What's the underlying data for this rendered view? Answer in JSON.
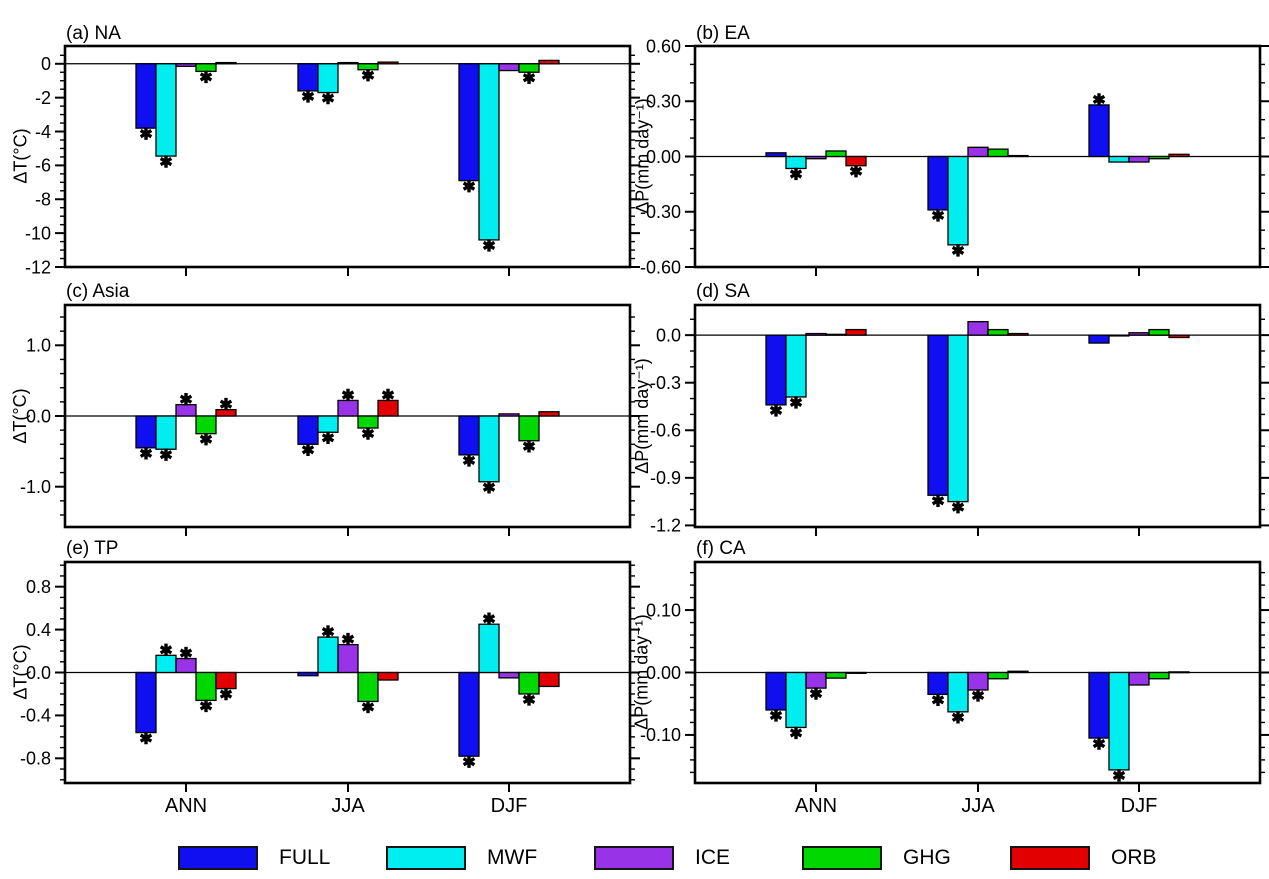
{
  "figure_type": "multi-panel seasonal bar chart",
  "categories": [
    "ANN",
    "JJA",
    "DJF"
  ],
  "experiments": [
    "FULL",
    "MWF",
    "ICE",
    "GHG",
    "ORB"
  ],
  "significance_marker": "black asterisk at bar tip",
  "legend": {
    "items": [
      {
        "label": "FULL",
        "color": "#0f0ff0"
      },
      {
        "label": "MWF",
        "color": "#00eef0"
      },
      {
        "label": "ICE",
        "color": "#9933e8"
      },
      {
        "label": "GHG",
        "color": "#00d800"
      },
      {
        "label": "ORB",
        "color": "#e30000"
      }
    ]
  },
  "chart_data": [
    {
      "id": "a",
      "type": "bar",
      "title": "(a) NA",
      "ylabel": "ΔT(°C)",
      "ylim": [
        -12,
        1.05
      ],
      "minor_step": 0.5,
      "show_x_labels": false,
      "categories": [
        "ANN",
        "JJA",
        "DJF"
      ],
      "yticks": [
        {
          "v": 0,
          "label": "0"
        },
        {
          "v": -2,
          "label": "-2"
        },
        {
          "v": -4,
          "label": "-4"
        },
        {
          "v": -6,
          "label": "-6"
        },
        {
          "v": -8,
          "label": "-8"
        },
        {
          "v": -10,
          "label": "-10"
        },
        {
          "v": -12,
          "label": "-12"
        }
      ],
      "series": [
        {
          "name": "FULL",
          "values": [
            -3.8,
            -1.6,
            -6.9
          ],
          "sig": [
            true,
            true,
            true
          ]
        },
        {
          "name": "MWF",
          "values": [
            -5.45,
            -1.7,
            -10.4
          ],
          "sig": [
            true,
            true,
            true
          ]
        },
        {
          "name": "ICE",
          "values": [
            -0.15,
            0.07,
            -0.4
          ],
          "sig": [
            false,
            false,
            false
          ]
        },
        {
          "name": "GHG",
          "values": [
            -0.45,
            -0.35,
            -0.5
          ],
          "sig": [
            true,
            true,
            true
          ]
        },
        {
          "name": "ORB",
          "values": [
            0.07,
            0.1,
            0.2
          ],
          "sig": [
            false,
            false,
            false
          ]
        }
      ]
    },
    {
      "id": "b",
      "type": "bar",
      "title": "(b) EA",
      "ylabel": "ΔP(mm day⁻¹)",
      "ylim": [
        -0.6,
        0.6
      ],
      "minor_step": 0.1,
      "show_x_labels": false,
      "categories": [
        "ANN",
        "JJA",
        "DJF"
      ],
      "yticks": [
        {
          "v": 0.6,
          "label": "0.60"
        },
        {
          "v": 0.3,
          "label": "0.30"
        },
        {
          "v": 0,
          "label": "0.00"
        },
        {
          "v": -0.3,
          "label": "-0.30"
        },
        {
          "v": -0.6,
          "label": "-0.60"
        }
      ],
      "series": [
        {
          "name": "FULL",
          "values": [
            0.02,
            -0.29,
            0.28
          ],
          "sig": [
            false,
            true,
            true
          ]
        },
        {
          "name": "MWF",
          "values": [
            -0.065,
            -0.48,
            -0.03
          ],
          "sig": [
            true,
            true,
            false
          ]
        },
        {
          "name": "ICE",
          "values": [
            -0.012,
            0.05,
            -0.03
          ],
          "sig": [
            false,
            false,
            false
          ]
        },
        {
          "name": "GHG",
          "values": [
            0.03,
            0.04,
            -0.012
          ],
          "sig": [
            false,
            false,
            false
          ]
        },
        {
          "name": "ORB",
          "values": [
            -0.05,
            0.005,
            0.012
          ],
          "sig": [
            true,
            false,
            false
          ]
        }
      ]
    },
    {
      "id": "c",
      "type": "bar",
      "title": "(c) Asia",
      "ylabel": "ΔT(°C)",
      "ylim": [
        -1.57,
        1.57
      ],
      "minor_step": 0.2,
      "show_x_labels": false,
      "categories": [
        "ANN",
        "JJA",
        "DJF"
      ],
      "yticks": [
        {
          "v": 1.0,
          "label": "1.0"
        },
        {
          "v": 0.0,
          "label": "0.0"
        },
        {
          "v": -1.0,
          "label": "-1.0"
        }
      ],
      "series": [
        {
          "name": "FULL",
          "values": [
            -0.45,
            -0.4,
            -0.55
          ],
          "sig": [
            true,
            true,
            true
          ]
        },
        {
          "name": "MWF",
          "values": [
            -0.47,
            -0.23,
            -0.93
          ],
          "sig": [
            true,
            true,
            true
          ]
        },
        {
          "name": "ICE",
          "values": [
            0.16,
            0.22,
            0.03
          ],
          "sig": [
            true,
            true,
            false
          ]
        },
        {
          "name": "GHG",
          "values": [
            -0.25,
            -0.17,
            -0.35
          ],
          "sig": [
            true,
            true,
            true
          ]
        },
        {
          "name": "ORB",
          "values": [
            0.09,
            0.22,
            0.06
          ],
          "sig": [
            true,
            true,
            false
          ]
        }
      ]
    },
    {
      "id": "d",
      "type": "bar",
      "title": "(d) SA",
      "ylabel": "ΔP(mm day⁻¹)",
      "ylim": [
        -1.21,
        0.19
      ],
      "minor_step": 0.1,
      "show_x_labels": false,
      "categories": [
        "ANN",
        "JJA",
        "DJF"
      ],
      "yticks": [
        {
          "v": 0.0,
          "label": "0.0"
        },
        {
          "v": -0.3,
          "label": "-0.3"
        },
        {
          "v": -0.6,
          "label": "-0.6"
        },
        {
          "v": -0.9,
          "label": "-0.9"
        },
        {
          "v": -1.2,
          "label": "-1.2"
        }
      ],
      "series": [
        {
          "name": "FULL",
          "values": [
            -0.44,
            -1.01,
            -0.05
          ],
          "sig": [
            true,
            true,
            false
          ]
        },
        {
          "name": "MWF",
          "values": [
            -0.39,
            -1.05,
            -0.005
          ],
          "sig": [
            true,
            true,
            false
          ]
        },
        {
          "name": "ICE",
          "values": [
            0.01,
            0.085,
            0.015
          ],
          "sig": [
            false,
            false,
            false
          ]
        },
        {
          "name": "GHG",
          "values": [
            0.005,
            0.035,
            0.035
          ],
          "sig": [
            false,
            false,
            false
          ]
        },
        {
          "name": "ORB",
          "values": [
            0.035,
            0.01,
            -0.015
          ],
          "sig": [
            false,
            false,
            false
          ]
        }
      ]
    },
    {
      "id": "e",
      "type": "bar",
      "title": "(e) TP",
      "ylabel": "ΔT(°C)",
      "ylim": [
        -1.03,
        1.03
      ],
      "minor_step": 0.1,
      "show_x_labels": true,
      "categories": [
        "ANN",
        "JJA",
        "DJF"
      ],
      "yticks": [
        {
          "v": 0.8,
          "label": "0.8"
        },
        {
          "v": 0.4,
          "label": "0.4"
        },
        {
          "v": 0.0,
          "label": "0.0"
        },
        {
          "v": -0.4,
          "label": "-0.4"
        },
        {
          "v": -0.8,
          "label": "-0.8"
        }
      ],
      "series": [
        {
          "name": "FULL",
          "values": [
            -0.56,
            -0.03,
            -0.78
          ],
          "sig": [
            true,
            false,
            true
          ]
        },
        {
          "name": "MWF",
          "values": [
            0.16,
            0.33,
            0.45
          ],
          "sig": [
            true,
            true,
            true
          ]
        },
        {
          "name": "ICE",
          "values": [
            0.13,
            0.26,
            -0.05
          ],
          "sig": [
            true,
            true,
            false
          ]
        },
        {
          "name": "GHG",
          "values": [
            -0.26,
            -0.27,
            -0.2
          ],
          "sig": [
            true,
            true,
            true
          ]
        },
        {
          "name": "ORB",
          "values": [
            -0.15,
            -0.07,
            -0.13
          ],
          "sig": [
            true,
            false,
            false
          ]
        }
      ]
    },
    {
      "id": "f",
      "type": "bar",
      "title": "(f) CA",
      "ylabel": "ΔP(mm day⁻¹)",
      "ylim": [
        -0.177,
        0.177
      ],
      "minor_step": 0.02,
      "show_x_labels": true,
      "categories": [
        "ANN",
        "JJA",
        "DJF"
      ],
      "yticks": [
        {
          "v": 0.1,
          "label": "0.10"
        },
        {
          "v": 0.0,
          "label": "0.00"
        },
        {
          "v": -0.1,
          "label": "-0.10"
        }
      ],
      "series": [
        {
          "name": "FULL",
          "values": [
            -0.06,
            -0.035,
            -0.105
          ],
          "sig": [
            true,
            true,
            true
          ]
        },
        {
          "name": "MWF",
          "values": [
            -0.088,
            -0.063,
            -0.156
          ],
          "sig": [
            true,
            true,
            true
          ]
        },
        {
          "name": "ICE",
          "values": [
            -0.025,
            -0.028,
            -0.02
          ],
          "sig": [
            true,
            true,
            false
          ]
        },
        {
          "name": "GHG",
          "values": [
            -0.009,
            -0.01,
            -0.01
          ],
          "sig": [
            false,
            false,
            false
          ]
        },
        {
          "name": "ORB",
          "values": [
            -0.001,
            0.002,
            0.001
          ],
          "sig": [
            false,
            false,
            false
          ]
        }
      ]
    }
  ]
}
